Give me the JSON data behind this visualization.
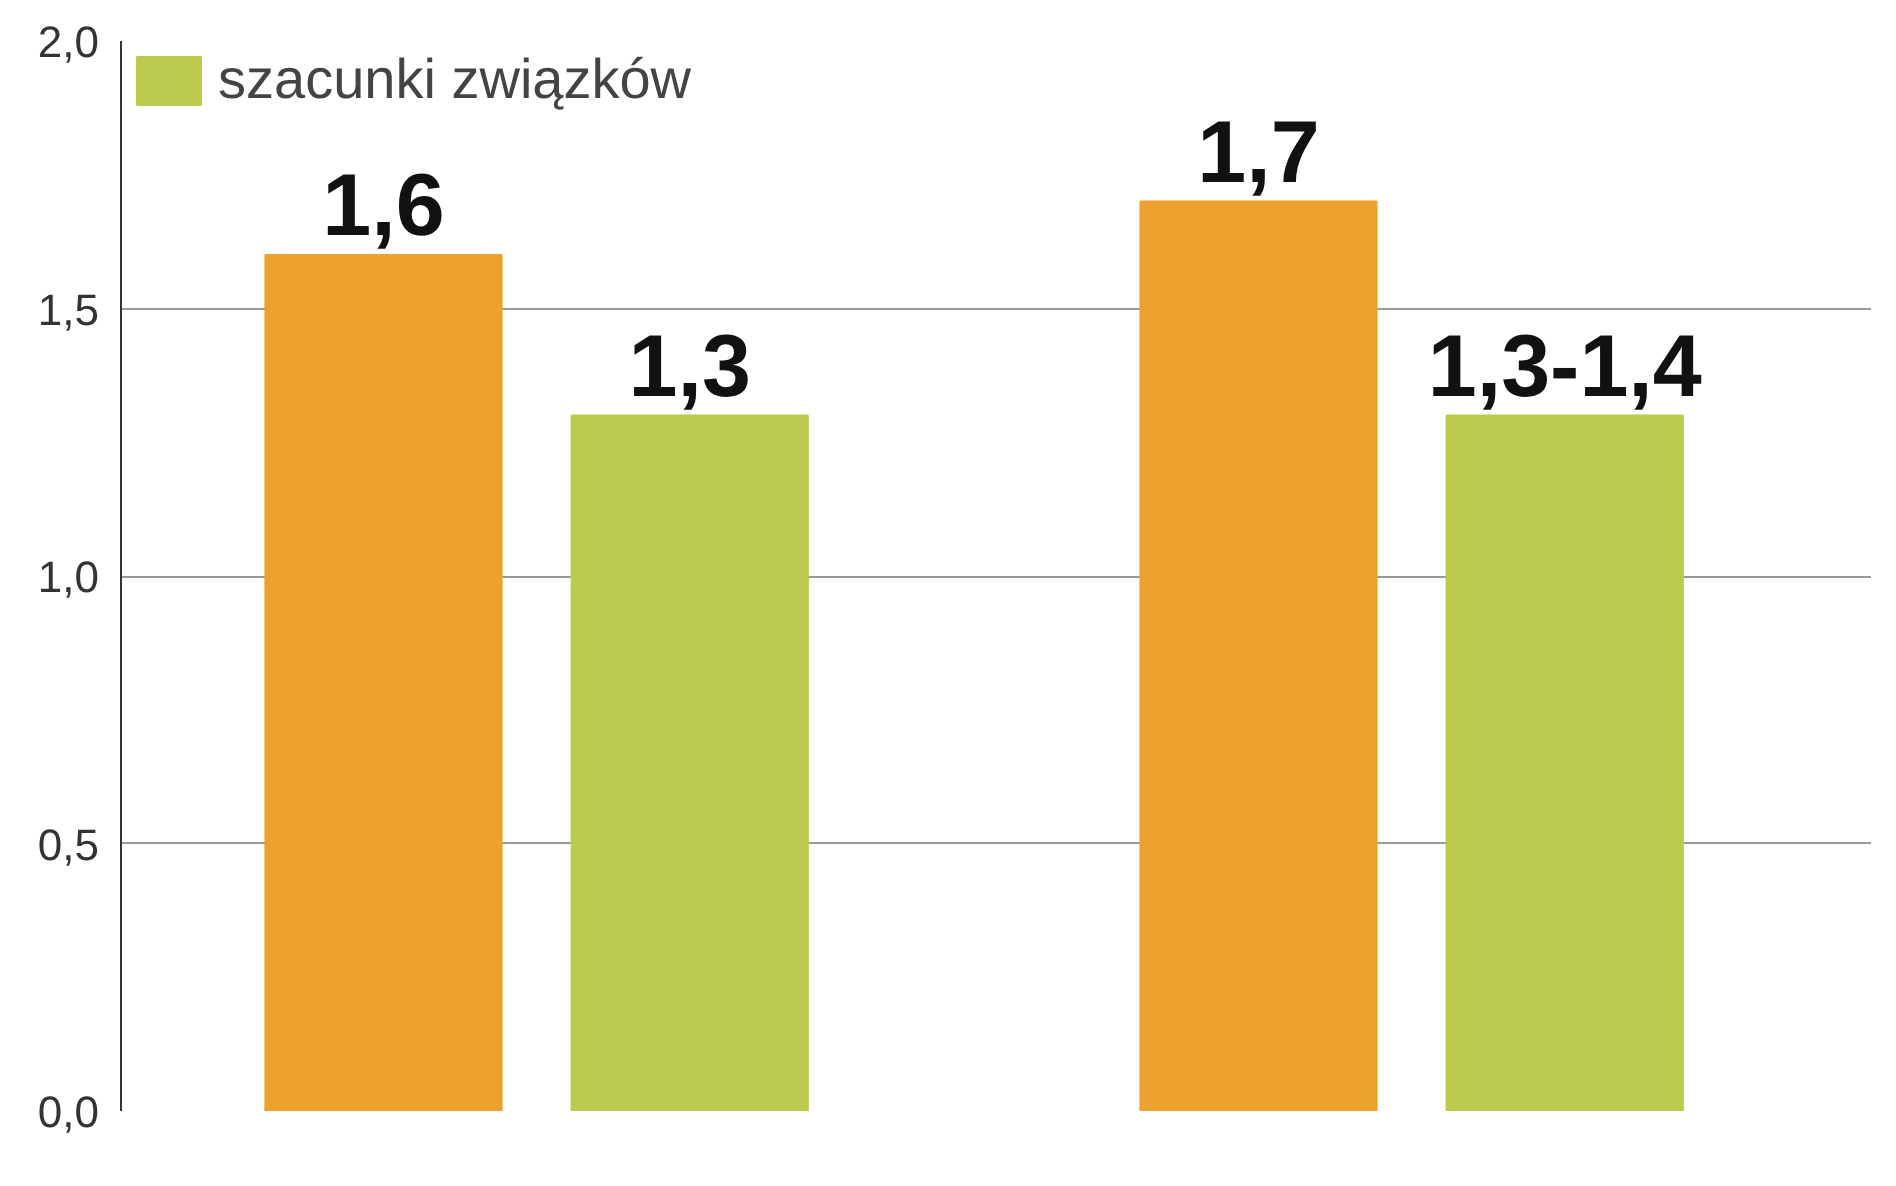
{
  "chart_data": {
    "type": "bar",
    "categories": [
      null,
      null
    ],
    "series": [
      {
        "color": "#eda12e",
        "values": [
          1.6,
          1.7
        ],
        "value_labels": [
          "1,6",
          "1,7"
        ]
      },
      {
        "name": "szacunki związków",
        "color": "#bccb4e",
        "values": [
          1.3,
          1.3
        ],
        "value_labels": [
          "1,3",
          "1,3-1,4"
        ]
      }
    ],
    "ylim": [
      0,
      2.0
    ],
    "yticks": [
      {
        "value": 0,
        "label": "0,0"
      },
      {
        "value": 0.5,
        "label": "0,5"
      },
      {
        "value": 1.0,
        "label": "1,0"
      },
      {
        "value": 1.5,
        "label": "1,5"
      },
      {
        "value": 2.0,
        "label": "2,0"
      }
    ],
    "grid": "y",
    "legend": "top left"
  }
}
